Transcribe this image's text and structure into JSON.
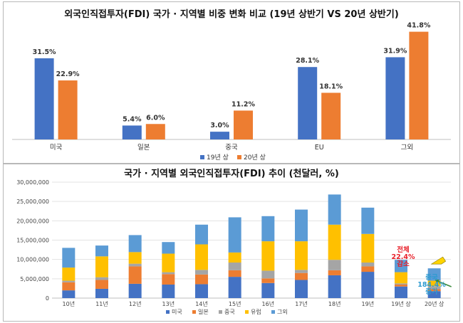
{
  "top_chart": {
    "title": "외국인직접투자(FDI) 국가 · 지역별 비중 변화 비교 (19년 상반기 VS 20년 상반기)",
    "legend": [
      "19년 상",
      "20년 상"
    ]
  },
  "bottom_chart": {
    "title": "국가 · 지역별 외국인직접투자(FDI) 추이 (천달러, %)",
    "legend": [
      "미국",
      "일본",
      "중국",
      "유럽",
      "그외"
    ],
    "annotation_total": [
      "전체",
      "22.4%",
      "감소"
    ],
    "annotation_china": [
      "중국",
      "184.4%",
      "증가"
    ]
  },
  "colors": {
    "blue": "#4472c4",
    "orange": "#ed7d31",
    "gray": "#a5a5a5",
    "yellow": "#ffc000",
    "light_blue": "#5b9bd5",
    "annotation_red": "#e8202a",
    "annotation_teal": "#2e9bd0"
  },
  "chart_data": [
    {
      "type": "bar",
      "title": "외국인직접투자(FDI) 국가 · 지역별 비중 변화 비교 (19년 상반기 VS 20년 상반기)",
      "categories": [
        "미국",
        "일본",
        "중국",
        "EU",
        "그외"
      ],
      "series": [
        {
          "name": "19년 상",
          "values": [
            31.5,
            5.4,
            3.0,
            28.1,
            31.9
          ],
          "labels": [
            "31.5%",
            "5.4%",
            "3.0%",
            "28.1%",
            "31.9%"
          ]
        },
        {
          "name": "20년 상",
          "values": [
            22.9,
            6.0,
            11.2,
            18.1,
            41.8
          ],
          "labels": [
            "22.9%",
            "6.0%",
            "11.2%",
            "18.1%",
            "41.8%"
          ]
        }
      ],
      "ylim": [
        0,
        45
      ],
      "grid": false,
      "legend": "bottom"
    },
    {
      "type": "bar",
      "stacked": true,
      "title": "국가 · 지역별 외국인직접투자(FDI) 추이 (천달러, %)",
      "categories": [
        "10년",
        "11년",
        "12년",
        "13년",
        "14년",
        "15년",
        "16년",
        "17년",
        "18년",
        "19년",
        "19년 상",
        "20년 상"
      ],
      "series": [
        {
          "name": "미국",
          "values": [
            2000000,
            2400000,
            3700000,
            3500000,
            3600000,
            5500000,
            3900000,
            4700000,
            5900000,
            6800000,
            3000000,
            1800000
          ]
        },
        {
          "name": "일본",
          "values": [
            2100000,
            2300000,
            4500000,
            2700000,
            2500000,
            1700000,
            1200000,
            1800000,
            1300000,
            1400000,
            500000,
            500000
          ]
        },
        {
          "name": "중국",
          "values": [
            400000,
            700000,
            700000,
            500000,
            1200000,
            2000000,
            2000000,
            800000,
            2700000,
            1000000,
            300000,
            800000
          ]
        },
        {
          "name": "유럽",
          "values": [
            3400000,
            5400000,
            3000000,
            4800000,
            6600000,
            2600000,
            7600000,
            7400000,
            9100000,
            7400000,
            2900000,
            1400000
          ]
        },
        {
          "name": "그외",
          "values": [
            5100000,
            2800000,
            4400000,
            3000000,
            5100000,
            9100000,
            6500000,
            8200000,
            7800000,
            6800000,
            3200000,
            3200000
          ]
        }
      ],
      "yticks": [
        "0",
        "5,000,000",
        "10,000,000",
        "15,000,000",
        "20,000,000",
        "25,000,000",
        "30,000,000"
      ],
      "ylim": [
        0,
        30000000
      ],
      "grid": true,
      "legend": "bottom"
    }
  ]
}
